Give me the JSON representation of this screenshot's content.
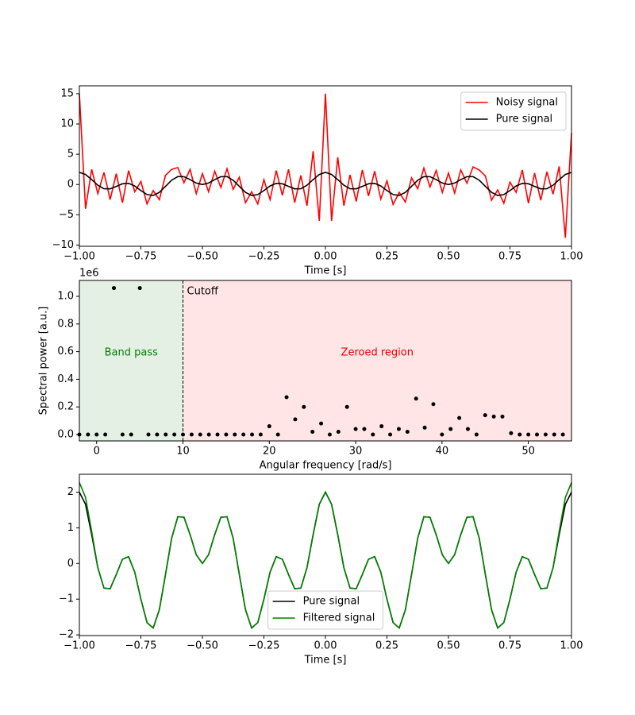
{
  "chart_data": [
    {
      "type": "line",
      "xlabel": "Time [s]",
      "xlim": [
        -1,
        1
      ],
      "ylim": [
        -10.2,
        16.3
      ],
      "xticks": [
        {
          "value": -1,
          "label": "−1.00"
        },
        {
          "value": -0.75,
          "label": "−0.75"
        },
        {
          "value": -0.5,
          "label": "−0.50"
        },
        {
          "value": -0.25,
          "label": "−0.25"
        },
        {
          "value": 0,
          "label": "0.00"
        },
        {
          "value": 0.25,
          "label": "0.25"
        },
        {
          "value": 0.5,
          "label": "0.50"
        },
        {
          "value": 0.75,
          "label": "0.75"
        },
        {
          "value": 1,
          "label": "1.00"
        }
      ],
      "yticks": [
        {
          "value": -10,
          "label": "−10"
        },
        {
          "value": -5,
          "label": "−5"
        },
        0,
        5,
        10,
        15
      ],
      "legend": "upper right",
      "x": [
        -1,
        -0.975,
        -0.95,
        -0.925,
        -0.9,
        -0.875,
        -0.85,
        -0.825,
        -0.8,
        -0.775,
        -0.75,
        -0.725,
        -0.7,
        -0.675,
        -0.65,
        -0.625,
        -0.6,
        -0.575,
        -0.55,
        -0.525,
        -0.5,
        -0.475,
        -0.45,
        -0.425,
        -0.4,
        -0.375,
        -0.35,
        -0.325,
        -0.3,
        -0.275,
        -0.25,
        -0.225,
        -0.2,
        -0.175,
        -0.15,
        -0.125,
        -0.1,
        -0.075,
        -0.05,
        -0.025,
        0,
        0.025,
        0.05,
        0.075,
        0.1,
        0.125,
        0.15,
        0.175,
        0.2,
        0.225,
        0.25,
        0.275,
        0.3,
        0.325,
        0.35,
        0.375,
        0.4,
        0.425,
        0.45,
        0.475,
        0.5,
        0.525,
        0.55,
        0.575,
        0.6,
        0.625,
        0.65,
        0.675,
        0.7,
        0.725,
        0.75,
        0.775,
        0.8,
        0.825,
        0.85,
        0.875,
        0.9,
        0.925,
        0.95,
        0.975,
        1
      ],
      "series": [
        {
          "name": "Noisy signal",
          "color": "#ff0000",
          "values": [
            15,
            -4,
            2.5,
            -1.5,
            2,
            -2.5,
            1.8,
            -3,
            2.3,
            -1.2,
            0.5,
            -3.2,
            -1,
            -2.5,
            1.5,
            2.5,
            2.8,
            0.3,
            2.5,
            -1.5,
            1.8,
            -1.2,
            2.2,
            -0.5,
            2.6,
            -0.8,
            1.2,
            -3,
            -1.2,
            -3.2,
            0.8,
            -2.5,
            2.3,
            -1.8,
            2.5,
            -3,
            1.5,
            -3.5,
            5.5,
            -6,
            15,
            -6,
            4.5,
            -3.5,
            1.6,
            -2.8,
            2.4,
            -1.9,
            2.2,
            -2.4,
            0.6,
            -3.3,
            -1.3,
            -2.9,
            1.1,
            -0.7,
            2.7,
            -0.4,
            2.3,
            -1.3,
            1.9,
            -1.4,
            2.4,
            0.2,
            2.9,
            2.4,
            1.4,
            -2.6,
            -0.9,
            -3.1,
            0.4,
            -1.3,
            2.4,
            -3.1,
            1.9,
            -2.6,
            2.1,
            -1.6,
            3,
            -8.8,
            8.5
          ]
        },
        {
          "name": "Pure signal",
          "color": "#000000",
          "values": [
            2,
            1.658,
            0.809,
            -0.119,
            -0.691,
            -0.707,
            -0.309,
            0.119,
            0.191,
            -0.244,
            -1,
            -1.658,
            -1.809,
            -1.295,
            -0.309,
            0.707,
            1.309,
            1.295,
            0.809,
            0.244,
            0,
            0.244,
            0.809,
            1.295,
            1.309,
            0.707,
            -0.309,
            -1.295,
            -1.809,
            -1.658,
            -1,
            -0.244,
            0.191,
            0.119,
            -0.309,
            -0.707,
            -0.691,
            -0.119,
            0.809,
            1.658,
            2,
            1.658,
            0.809,
            -0.119,
            -0.691,
            -0.707,
            -0.309,
            0.119,
            0.191,
            -0.244,
            -1,
            -1.658,
            -1.809,
            -1.295,
            -0.309,
            0.707,
            1.309,
            1.295,
            0.809,
            0.244,
            0,
            0.244,
            0.809,
            1.295,
            1.309,
            0.707,
            -0.309,
            -1.295,
            -1.809,
            -1.658,
            -1,
            -0.244,
            0.191,
            0.119,
            -0.309,
            -0.707,
            -0.691,
            -0.119,
            0.809,
            1.658,
            2
          ]
        }
      ]
    },
    {
      "type": "scatter",
      "xlabel": "Angular frequency [rad/s]",
      "ylabel": "Spectral power [a.u.]",
      "offset_label": "1e6",
      "xlim": [
        -2,
        55
      ],
      "ylim": [
        -0.046,
        1.115
      ],
      "xticks": [
        0,
        10,
        20,
        30,
        40,
        50
      ],
      "yticks": [
        {
          "value": 0,
          "label": "0.0"
        },
        {
          "value": 0.2,
          "label": "0.2"
        },
        {
          "value": 0.4,
          "label": "0.4"
        },
        {
          "value": 0.6,
          "label": "0.6"
        },
        {
          "value": 0.8,
          "label": "0.8"
        },
        {
          "value": 1,
          "label": "1.0"
        }
      ],
      "regions": [
        {
          "label": "Band pass",
          "range": [
            -2,
            10
          ],
          "color": "#e5f0e5",
          "text_color": "#008000"
        },
        {
          "label": "Zeroed region",
          "range": [
            10,
            55
          ],
          "color": "#ffe5e5",
          "text_color": "#e00000"
        }
      ],
      "cutoff": 10,
      "cutoff_label": "Cutoff",
      "color": "#000000",
      "x": [
        -2,
        -1,
        0,
        1,
        2,
        3,
        4,
        5,
        6,
        7,
        8,
        9,
        10,
        11,
        12,
        13,
        14,
        15,
        16,
        17,
        18,
        19,
        20,
        21,
        22,
        23,
        24,
        25,
        26,
        27,
        28,
        29,
        30,
        31,
        32,
        33,
        34,
        35,
        36,
        37,
        38,
        39,
        40,
        41,
        42,
        43,
        44,
        45,
        46,
        47,
        48,
        49,
        50,
        51,
        52,
        53,
        54
      ],
      "values": [
        0,
        0,
        0,
        0,
        1.06,
        0,
        0,
        1.06,
        0,
        0,
        0,
        0,
        0,
        0,
        0,
        0,
        0,
        0,
        0,
        0,
        0,
        0,
        0.06,
        0,
        0.27,
        0.11,
        0.2,
        0.02,
        0.08,
        0,
        0.02,
        0.2,
        0.04,
        0.04,
        0,
        0.06,
        0,
        0.04,
        0.02,
        0.26,
        0.05,
        0.22,
        0,
        0.04,
        0.12,
        0.04,
        0,
        0.14,
        0.13,
        0.13,
        0.01,
        0,
        0,
        0,
        0,
        0,
        0
      ]
    },
    {
      "type": "line",
      "xlabel": "Time [s]",
      "xlim": [
        -1,
        1
      ],
      "ylim": [
        -2.02,
        2.5
      ],
      "xticks": [
        {
          "value": -1,
          "label": "−1.00"
        },
        {
          "value": -0.75,
          "label": "−0.75"
        },
        {
          "value": -0.5,
          "label": "−0.50"
        },
        {
          "value": -0.25,
          "label": "−0.25"
        },
        {
          "value": 0,
          "label": "0.00"
        },
        {
          "value": 0.25,
          "label": "0.25"
        },
        {
          "value": 0.5,
          "label": "0.50"
        },
        {
          "value": 0.75,
          "label": "0.75"
        },
        {
          "value": 1,
          "label": "1.00"
        }
      ],
      "yticks": [
        {
          "value": -2,
          "label": "−2"
        },
        {
          "value": -1,
          "label": "−1"
        },
        0,
        1,
        2
      ],
      "legend": "lower center",
      "x": [
        -1,
        -0.975,
        -0.95,
        -0.925,
        -0.9,
        -0.875,
        -0.85,
        -0.825,
        -0.8,
        -0.775,
        -0.75,
        -0.725,
        -0.7,
        -0.675,
        -0.65,
        -0.625,
        -0.6,
        -0.575,
        -0.55,
        -0.525,
        -0.5,
        -0.475,
        -0.45,
        -0.425,
        -0.4,
        -0.375,
        -0.35,
        -0.325,
        -0.3,
        -0.275,
        -0.25,
        -0.225,
        -0.2,
        -0.175,
        -0.15,
        -0.125,
        -0.1,
        -0.075,
        -0.05,
        -0.025,
        0,
        0.025,
        0.05,
        0.075,
        0.1,
        0.125,
        0.15,
        0.175,
        0.2,
        0.225,
        0.25,
        0.275,
        0.3,
        0.325,
        0.35,
        0.375,
        0.4,
        0.425,
        0.45,
        0.475,
        0.5,
        0.525,
        0.55,
        0.575,
        0.6,
        0.625,
        0.65,
        0.675,
        0.7,
        0.725,
        0.75,
        0.775,
        0.8,
        0.825,
        0.85,
        0.875,
        0.9,
        0.925,
        0.95,
        0.975,
        1
      ],
      "series": [
        {
          "name": "Pure signal",
          "color": "#000000",
          "values": [
            2,
            1.658,
            0.809,
            -0.119,
            -0.691,
            -0.707,
            -0.309,
            0.119,
            0.191,
            -0.244,
            -1,
            -1.658,
            -1.809,
            -1.295,
            -0.309,
            0.707,
            1.309,
            1.295,
            0.809,
            0.244,
            0,
            0.244,
            0.809,
            1.295,
            1.309,
            0.707,
            -0.309,
            -1.295,
            -1.809,
            -1.658,
            -1,
            -0.244,
            0.191,
            0.119,
            -0.309,
            -0.707,
            -0.691,
            -0.119,
            0.809,
            1.658,
            2,
            1.658,
            0.809,
            -0.119,
            -0.691,
            -0.707,
            -0.309,
            0.119,
            0.191,
            -0.244,
            -1,
            -1.658,
            -1.809,
            -1.295,
            -0.309,
            0.707,
            1.309,
            1.295,
            0.809,
            0.244,
            0,
            0.244,
            0.809,
            1.295,
            1.309,
            0.707,
            -0.309,
            -1.295,
            -1.809,
            -1.658,
            -1,
            -0.244,
            0.191,
            0.119,
            -0.309,
            -0.707,
            -0.691,
            -0.119,
            0.809,
            1.658,
            2
          ]
        },
        {
          "name": "Filtered signal",
          "color": "#008000",
          "values": [
            2.27,
            1.85,
            0.9,
            -0.119,
            -0.691,
            -0.707,
            -0.309,
            0.119,
            0.191,
            -0.244,
            -1,
            -1.658,
            -1.809,
            -1.295,
            -0.309,
            0.707,
            1.309,
            1.295,
            0.809,
            0.244,
            0,
            0.244,
            0.809,
            1.295,
            1.309,
            0.707,
            -0.309,
            -1.295,
            -1.809,
            -1.658,
            -1,
            -0.244,
            0.191,
            0.119,
            -0.309,
            -0.707,
            -0.691,
            -0.119,
            0.809,
            1.658,
            2,
            1.658,
            0.809,
            -0.119,
            -0.691,
            -0.707,
            -0.309,
            0.119,
            0.191,
            -0.244,
            -1,
            -1.658,
            -1.809,
            -1.295,
            -0.309,
            0.707,
            1.309,
            1.295,
            0.809,
            0.244,
            0,
            0.244,
            0.809,
            1.295,
            1.309,
            0.707,
            -0.309,
            -1.295,
            -1.809,
            -1.658,
            -1,
            -0.244,
            0.191,
            0.119,
            -0.309,
            -0.707,
            -0.691,
            -0.119,
            0.9,
            1.85,
            2.27
          ]
        }
      ]
    }
  ]
}
